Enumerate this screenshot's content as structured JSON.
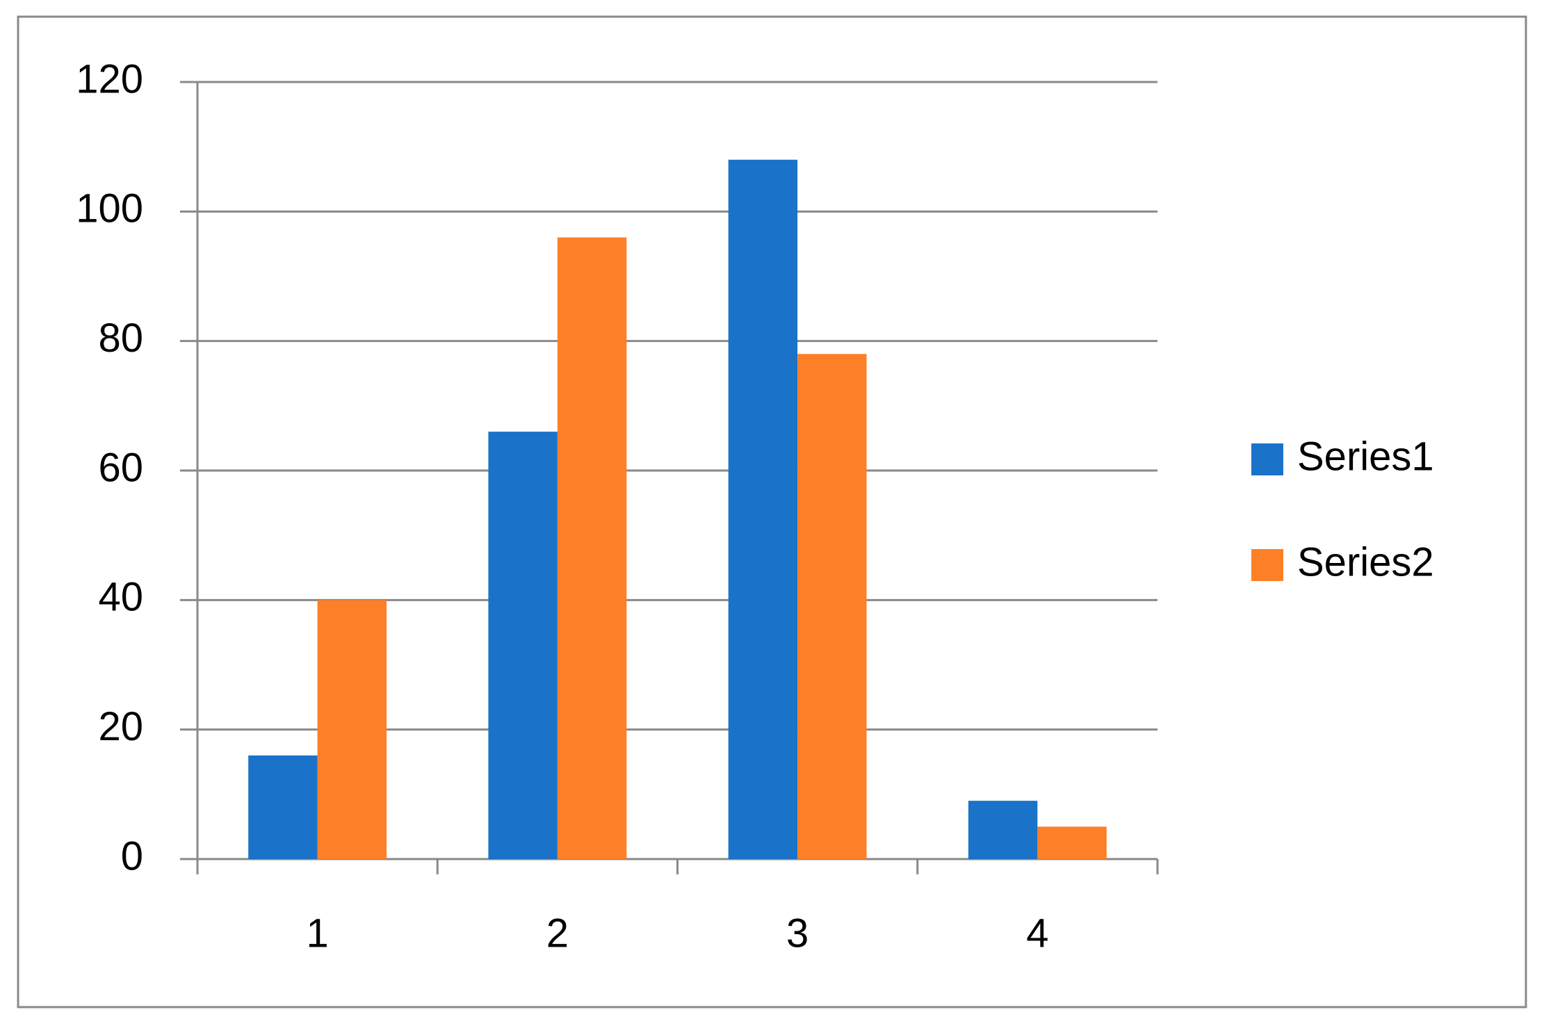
{
  "chart_data": {
    "type": "bar",
    "categories": [
      "1",
      "2",
      "3",
      "4"
    ],
    "series": [
      {
        "name": "Series1",
        "color": "#1a73c8",
        "values": [
          16,
          66,
          108,
          9
        ]
      },
      {
        "name": "Series2",
        "color": "#fd7f27",
        "values": [
          40,
          96,
          78,
          5
        ]
      }
    ],
    "ylim": [
      0,
      120
    ],
    "yticks": [
      0,
      20,
      40,
      60,
      80,
      100,
      120
    ],
    "grid": true,
    "legend": "right"
  }
}
